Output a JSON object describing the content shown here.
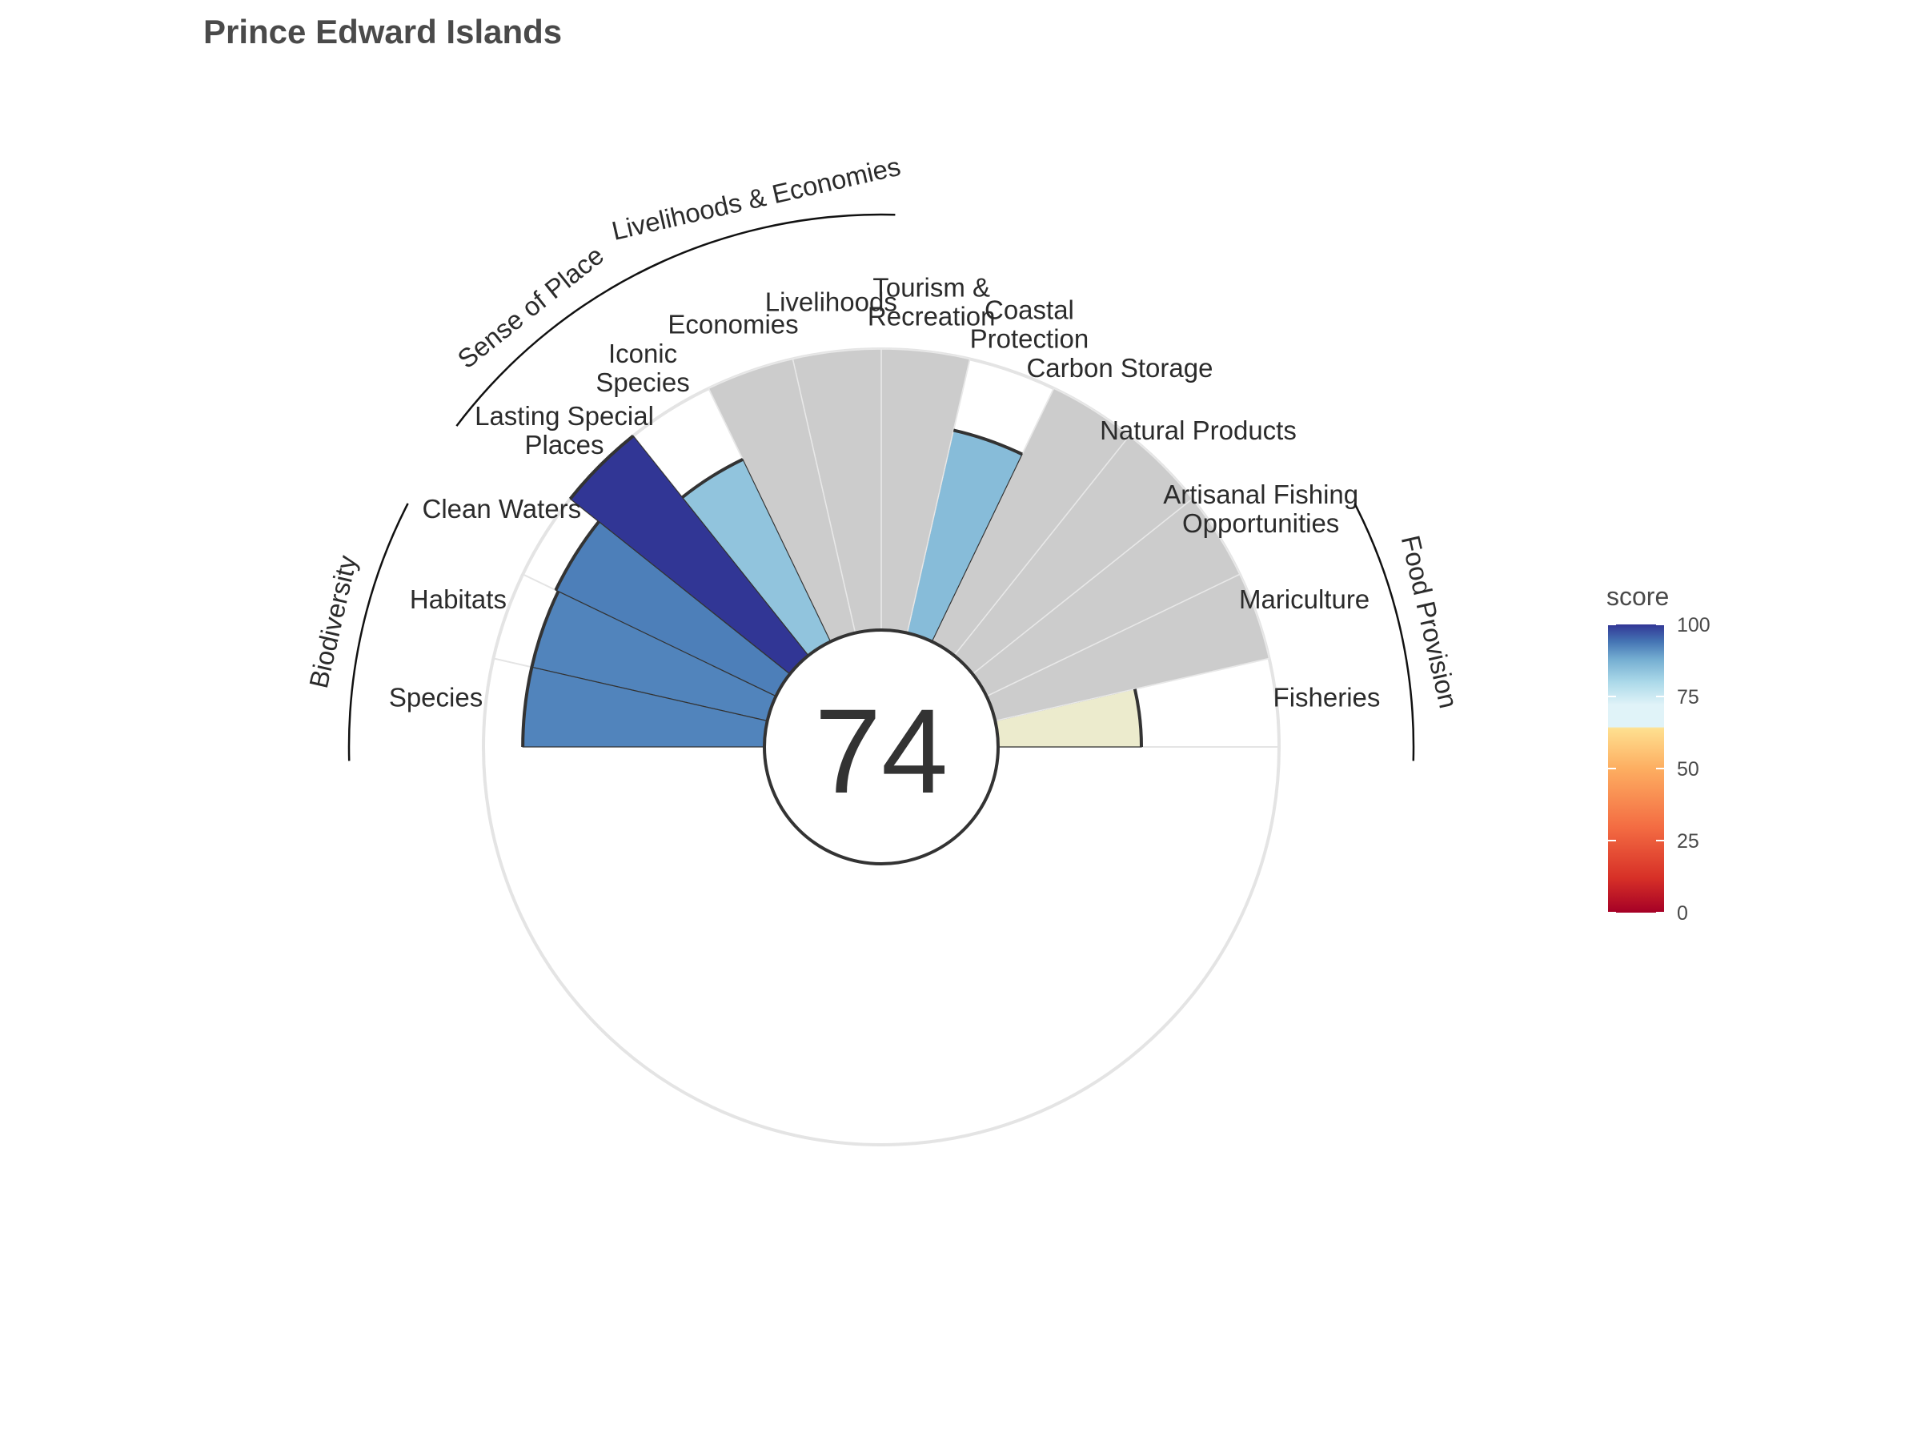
{
  "chart_data": {
    "type": "polar-bar",
    "title": "Prince Edward Islands",
    "center_score": "74",
    "ylim": [
      0,
      100
    ],
    "goals": [
      {
        "label": [
          "Fisheries"
        ],
        "score": 51,
        "na": false
      },
      {
        "label": [
          "Mariculture"
        ],
        "score": null,
        "na": true
      },
      {
        "label": [
          "Artisanal Fishing",
          "Opportunities"
        ],
        "score": null,
        "na": true
      },
      {
        "label": [
          "Natural Products"
        ],
        "score": null,
        "na": true
      },
      {
        "label": [
          "Carbon Storage"
        ],
        "score": null,
        "na": true
      },
      {
        "label": [
          "Coastal",
          "Protection"
        ],
        "score": 74,
        "na": false
      },
      {
        "label": [
          "Tourism &",
          "Recreation"
        ],
        "score": null,
        "na": true
      },
      {
        "label": [
          "Livelihoods"
        ],
        "score": null,
        "na": true
      },
      {
        "label": [
          "Economies"
        ],
        "score": null,
        "na": true
      },
      {
        "label": [
          "Iconic",
          "Species"
        ],
        "score": 72,
        "na": false
      },
      {
        "label": [
          "Lasting Special",
          "Places"
        ],
        "score": 100,
        "na": false
      },
      {
        "label": [
          "Clean Waters"
        ],
        "score": 87,
        "na": false
      },
      {
        "label": [
          "Habitats"
        ],
        "score": 86,
        "na": false
      },
      {
        "label": [
          "Species"
        ],
        "score": 86,
        "na": false
      }
    ],
    "groups": [
      {
        "label": "Food Provision",
        "from": 0,
        "to": 1
      },
      {
        "label": "Livelihoods & Economies",
        "from": 7,
        "to": 8
      },
      {
        "label": "Sense of Place",
        "from": 9,
        "to": 10
      },
      {
        "label": "Biodiversity",
        "from": 12,
        "to": 13
      }
    ],
    "legend": {
      "title": "score",
      "ticks": [
        0,
        25,
        50,
        75,
        100
      ]
    },
    "colors": {
      "na_fill": "#cccccc",
      "ring": "#e4e4e4",
      "outline": "#333333",
      "scale": [
        "#a50026",
        "#d73027",
        "#f46d43",
        "#fdae61",
        "#fee090",
        "#e0f3f8",
        "#abd9e9",
        "#74add1",
        "#4575b4",
        "#313695"
      ]
    }
  }
}
